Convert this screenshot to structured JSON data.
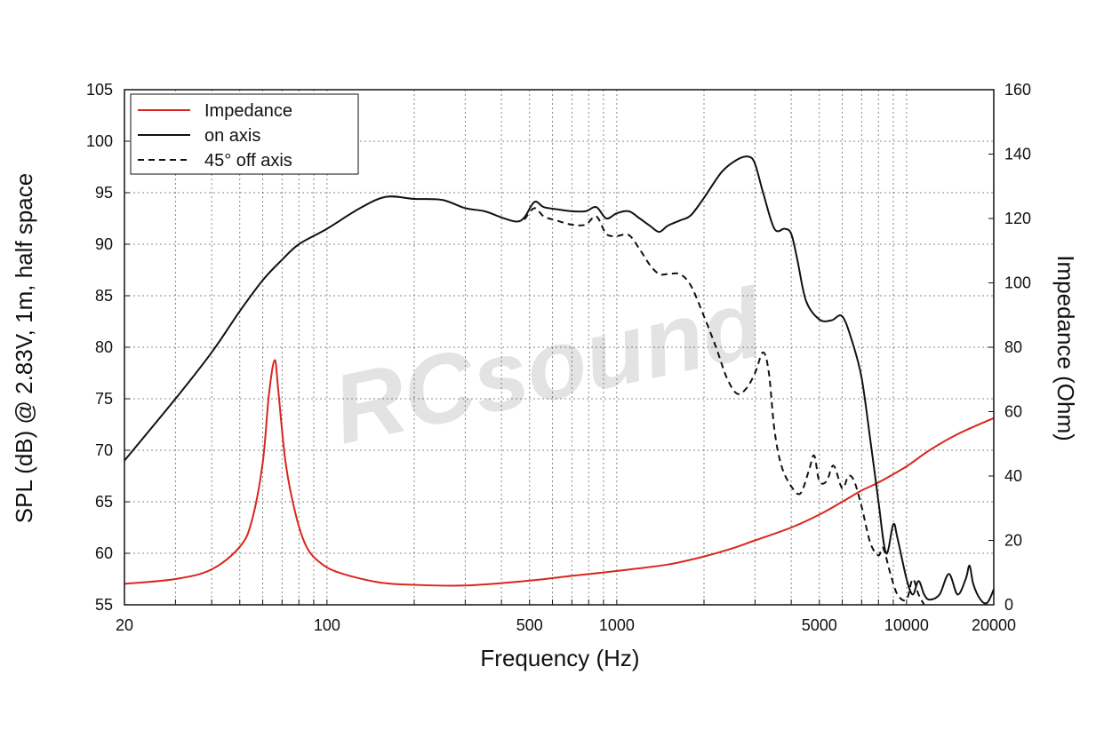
{
  "chart_data": {
    "type": "line",
    "x_scale": "log",
    "xlim": [
      20,
      20000
    ],
    "ylim_left": [
      55,
      105
    ],
    "ylim_right": [
      0,
      160
    ],
    "xlabel": "Frequency (Hz)",
    "ylabel_left": "SPL (dB) @ 2.83V, 1m, half space",
    "ylabel_right": "Impedance (Ohm)",
    "x_ticks": [
      "20",
      "100",
      "500",
      "1000",
      "5000",
      "10000",
      "20000"
    ],
    "x_tick_values": [
      20,
      100,
      500,
      1000,
      5000,
      10000,
      20000
    ],
    "y_ticks_left": [
      "55",
      "60",
      "65",
      "70",
      "75",
      "80",
      "85",
      "90",
      "95",
      "100",
      "105"
    ],
    "y_tick_values_left": [
      55,
      60,
      65,
      70,
      75,
      80,
      85,
      90,
      95,
      100,
      105
    ],
    "y_ticks_right": [
      "0",
      "20",
      "40",
      "60",
      "80",
      "100",
      "120",
      "140",
      "160"
    ],
    "y_tick_values_right": [
      0,
      20,
      40,
      60,
      80,
      100,
      120,
      140,
      160
    ],
    "grid": true,
    "legend_position": "top-left",
    "watermark": "RCsound",
    "series": [
      {
        "name": "Impedance",
        "axis": "right",
        "color": "#d9261c",
        "style": "solid",
        "points": [
          [
            20,
            6.5
          ],
          [
            30,
            8
          ],
          [
            40,
            11
          ],
          [
            50,
            18
          ],
          [
            55,
            26
          ],
          [
            60,
            44
          ],
          [
            63,
            65
          ],
          [
            66,
            76
          ],
          [
            68,
            66
          ],
          [
            72,
            44
          ],
          [
            78,
            28
          ],
          [
            85,
            18
          ],
          [
            95,
            13
          ],
          [
            110,
            10
          ],
          [
            150,
            7
          ],
          [
            200,
            6.2
          ],
          [
            300,
            6
          ],
          [
            500,
            7.5
          ],
          [
            700,
            9
          ],
          [
            1000,
            10.5
          ],
          [
            1500,
            12.5
          ],
          [
            2000,
            15
          ],
          [
            2500,
            17.5
          ],
          [
            3000,
            20
          ],
          [
            4000,
            24
          ],
          [
            5000,
            28
          ],
          [
            6000,
            32
          ],
          [
            7000,
            35.5
          ],
          [
            8000,
            38
          ],
          [
            10000,
            43
          ],
          [
            12000,
            48
          ],
          [
            15000,
            53
          ],
          [
            20000,
            58
          ]
        ]
      },
      {
        "name": "on axis",
        "axis": "left",
        "color": "#111111",
        "style": "solid",
        "points": [
          [
            20,
            69
          ],
          [
            30,
            75
          ],
          [
            40,
            79.5
          ],
          [
            50,
            83.5
          ],
          [
            60,
            86.5
          ],
          [
            70,
            88.5
          ],
          [
            80,
            90
          ],
          [
            100,
            91.5
          ],
          [
            130,
            93.5
          ],
          [
            160,
            94.6
          ],
          [
            200,
            94.4
          ],
          [
            250,
            94.3
          ],
          [
            300,
            93.5
          ],
          [
            350,
            93.2
          ],
          [
            400,
            92.6
          ],
          [
            450,
            92.2
          ],
          [
            480,
            92.6
          ],
          [
            520,
            94.1
          ],
          [
            560,
            93.6
          ],
          [
            620,
            93.4
          ],
          [
            700,
            93.2
          ],
          [
            780,
            93.2
          ],
          [
            850,
            93.6
          ],
          [
            920,
            92.5
          ],
          [
            1000,
            93
          ],
          [
            1100,
            93.2
          ],
          [
            1200,
            92.5
          ],
          [
            1300,
            91.8
          ],
          [
            1400,
            91.2
          ],
          [
            1500,
            91.8
          ],
          [
            1650,
            92.3
          ],
          [
            1800,
            92.8
          ],
          [
            2000,
            94.5
          ],
          [
            2300,
            97
          ],
          [
            2600,
            98.2
          ],
          [
            2850,
            98.5
          ],
          [
            3000,
            97.8
          ],
          [
            3200,
            95
          ],
          [
            3500,
            91.5
          ],
          [
            3800,
            91.5
          ],
          [
            4000,
            91
          ],
          [
            4200,
            88.5
          ],
          [
            4500,
            84.5
          ],
          [
            5000,
            82.7
          ],
          [
            5500,
            82.6
          ],
          [
            6000,
            83
          ],
          [
            6500,
            80.5
          ],
          [
            7000,
            77
          ],
          [
            7500,
            71
          ],
          [
            8000,
            65
          ],
          [
            8500,
            60
          ],
          [
            9000,
            62.8
          ],
          [
            9300,
            61.5
          ],
          [
            10000,
            57.5
          ],
          [
            10500,
            56
          ],
          [
            11000,
            57.3
          ],
          [
            11500,
            56
          ],
          [
            12000,
            55.5
          ],
          [
            13000,
            56
          ],
          [
            14000,
            58
          ],
          [
            15000,
            56
          ],
          [
            16000,
            57.5
          ],
          [
            16500,
            58.8
          ],
          [
            17000,
            57
          ],
          [
            18000,
            55.5
          ],
          [
            19000,
            55.2
          ],
          [
            20000,
            56.5
          ]
        ]
      },
      {
        "name": "45° off axis",
        "axis": "left",
        "color": "#111111",
        "style": "dashed",
        "points": [
          [
            480,
            92.4
          ],
          [
            520,
            93.5
          ],
          [
            560,
            92.7
          ],
          [
            620,
            92.3
          ],
          [
            700,
            91.9
          ],
          [
            780,
            91.9
          ],
          [
            850,
            92.7
          ],
          [
            920,
            91
          ],
          [
            1000,
            90.8
          ],
          [
            1100,
            90.9
          ],
          [
            1200,
            89.5
          ],
          [
            1300,
            88
          ],
          [
            1400,
            87.1
          ],
          [
            1500,
            87.1
          ],
          [
            1650,
            87.1
          ],
          [
            1800,
            86
          ],
          [
            2000,
            83
          ],
          [
            2200,
            80
          ],
          [
            2400,
            77
          ],
          [
            2600,
            75.5
          ],
          [
            2800,
            76
          ],
          [
            3000,
            77.5
          ],
          [
            3200,
            79.5
          ],
          [
            3350,
            77.5
          ],
          [
            3500,
            72
          ],
          [
            3700,
            68.5
          ],
          [
            4000,
            66.5
          ],
          [
            4300,
            65.8
          ],
          [
            4600,
            68
          ],
          [
            4800,
            69.5
          ],
          [
            5000,
            67
          ],
          [
            5300,
            67
          ],
          [
            5600,
            68.5
          ],
          [
            6000,
            66.3
          ],
          [
            6300,
            67.5
          ],
          [
            6600,
            67
          ],
          [
            7000,
            64.5
          ],
          [
            7500,
            61
          ],
          [
            8000,
            59.8
          ],
          [
            8300,
            60.5
          ],
          [
            8800,
            58
          ],
          [
            9300,
            56
          ],
          [
            10000,
            55.5
          ],
          [
            10500,
            57.5
          ],
          [
            11000,
            56
          ],
          [
            11500,
            55
          ]
        ]
      }
    ]
  }
}
